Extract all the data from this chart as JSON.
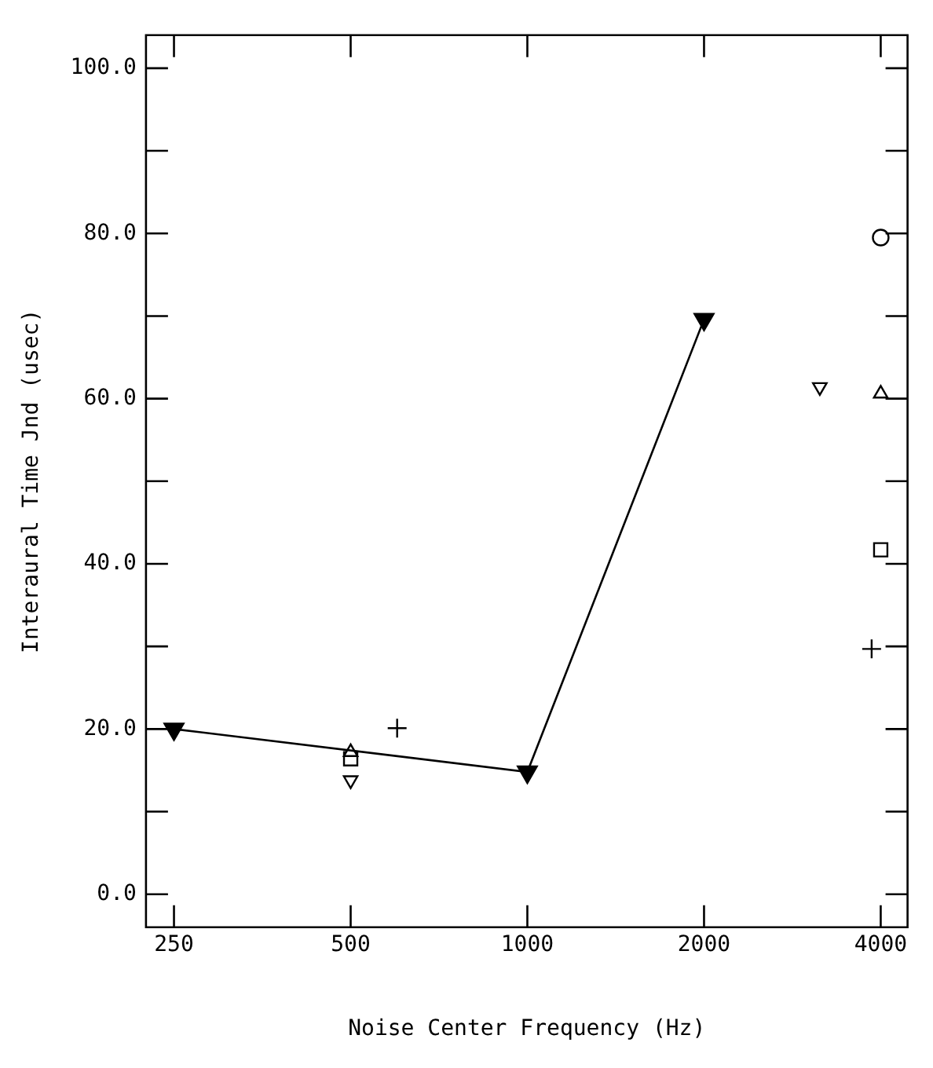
{
  "chart_data": {
    "type": "scatter",
    "xlabel": "Noise Center Frequency (Hz)",
    "ylabel": "Interaural Time Jnd (usec)",
    "log": "x",
    "grid": false,
    "legend": false,
    "xlim": [
      224,
      4444
    ],
    "xticks": [
      250,
      500,
      1000,
      2000,
      4000
    ],
    "ylim": [
      -4,
      104
    ],
    "yticks": [
      {
        "value": 0,
        "label": "0.0"
      },
      {
        "value": 10,
        "label": null
      },
      {
        "value": 20,
        "label": "20.0"
      },
      {
        "value": 30,
        "label": null
      },
      {
        "value": 40,
        "label": "40.0"
      },
      {
        "value": 50,
        "label": null
      },
      {
        "value": 60,
        "label": "60.0"
      },
      {
        "value": 70,
        "label": null
      },
      {
        "value": 80,
        "label": "80.0"
      },
      {
        "value": 90,
        "label": null
      },
      {
        "value": 100,
        "label": "100.0"
      }
    ],
    "series": [
      {
        "type": "line",
        "color": "#000000",
        "marker": "triangle-down",
        "x": [
          250,
          1000,
          2000
        ],
        "values": [
          20,
          14.8,
          69.6
        ]
      },
      {
        "type": "scatter",
        "color": "#000000",
        "marker": "triangle",
        "x": [
          500,
          4000
        ],
        "values": [
          17.2,
          60.6
        ]
      },
      {
        "type": "scatter",
        "color": "#000000",
        "marker": "square",
        "x": [
          500,
          4000
        ],
        "values": [
          16.4,
          41.7
        ]
      },
      {
        "type": "scatter",
        "color": "#000000",
        "marker": "triangle-down",
        "x": [
          500,
          3150
        ],
        "values": [
          13.8,
          61.4
        ]
      },
      {
        "type": "scatter",
        "color": "#000000",
        "marker": "cross",
        "x": [
          600,
          3860
        ],
        "values": [
          20.1,
          29.7
        ]
      },
      {
        "type": "scatter",
        "color": "#000000",
        "marker": "circle",
        "x": [
          4000
        ],
        "values": [
          79.5
        ]
      }
    ]
  }
}
